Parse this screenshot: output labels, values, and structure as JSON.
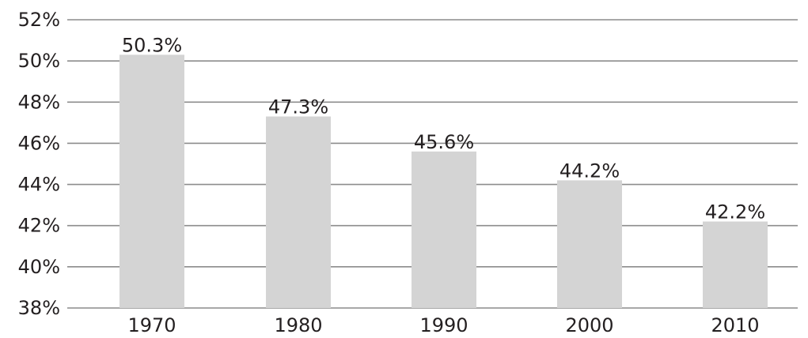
{
  "chart_data": {
    "type": "bar",
    "title": "",
    "xlabel": "",
    "ylabel": "",
    "categories": [
      "1970",
      "1980",
      "1990",
      "2000",
      "2010"
    ],
    "values": [
      50.3,
      47.3,
      45.6,
      44.2,
      42.2
    ],
    "data_labels": [
      "50.3%",
      "47.3%",
      "45.6%",
      "44.2%",
      "42.2%"
    ],
    "ylim": [
      38,
      52
    ],
    "y_ticks": [
      38,
      40,
      42,
      44,
      46,
      48,
      50,
      52
    ],
    "y_tick_labels": [
      "38%",
      "40%",
      "42%",
      "44%",
      "46%",
      "48%",
      "50%",
      "52%"
    ],
    "grid": true,
    "legend": "none",
    "colors": {
      "bar": "#d4d4d4",
      "grid": "#8c8c8c",
      "text": "#231f20"
    }
  }
}
